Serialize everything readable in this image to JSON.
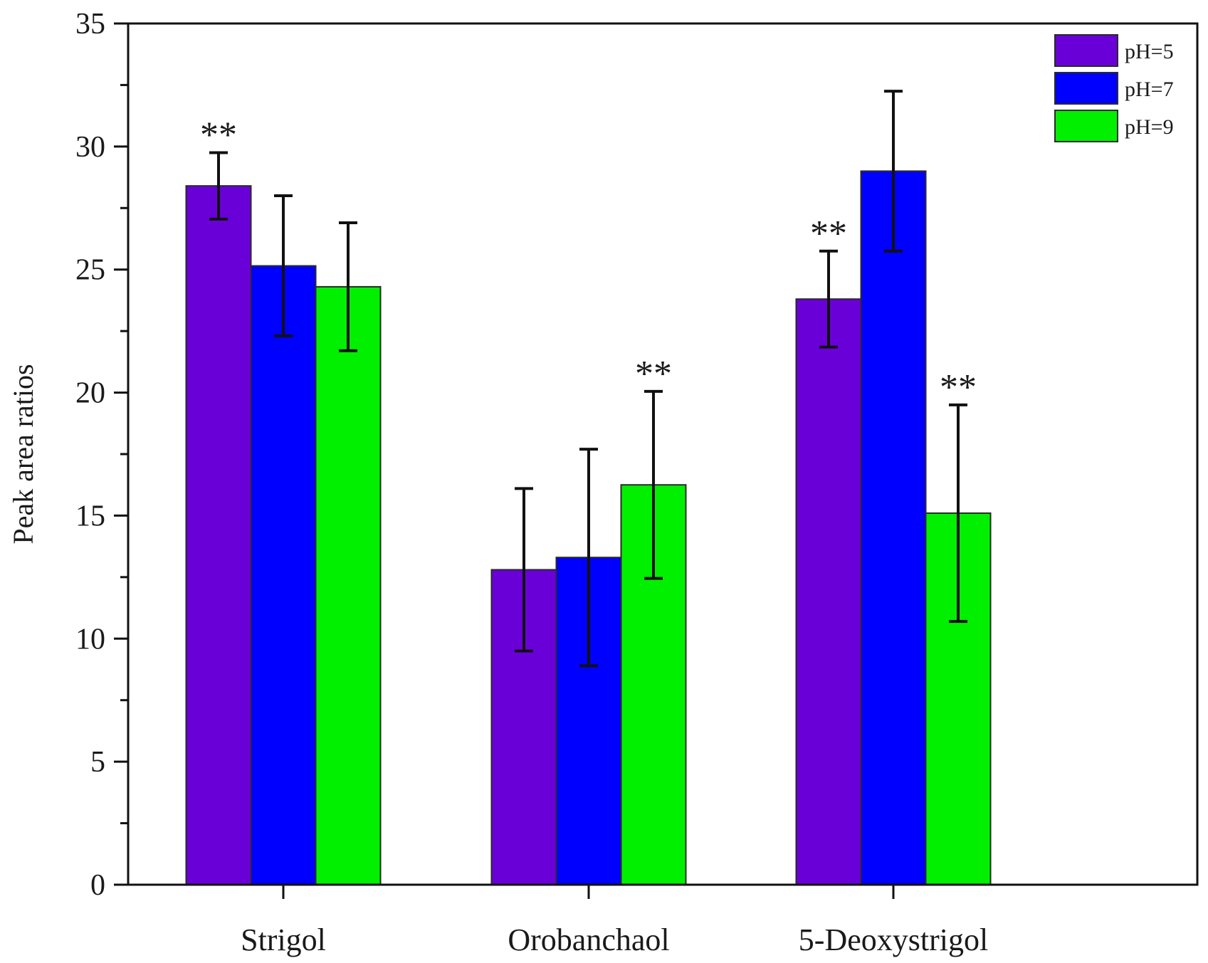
{
  "chart_data": {
    "type": "bar",
    "title": "",
    "xlabel": "",
    "ylabel": "Peak area ratios",
    "ylim": [
      0,
      35
    ],
    "yticks": [
      0,
      5,
      10,
      15,
      20,
      25,
      30,
      35
    ],
    "categories": [
      "Strigol",
      "Orobanchaol",
      "5-Deoxystrigol"
    ],
    "legend_position": "top-right",
    "series": [
      {
        "name": "pH=5",
        "color": "#6a00d8",
        "values": [
          28.4,
          12.8,
          23.8
        ],
        "errors": [
          1.35,
          3.3,
          1.95
        ],
        "significance": [
          "**",
          "",
          "**"
        ]
      },
      {
        "name": "pH=7",
        "color": "#0000ff",
        "values": [
          25.15,
          13.3,
          29.0
        ],
        "errors": [
          2.85,
          4.4,
          3.25
        ],
        "significance": [
          "",
          "",
          ""
        ]
      },
      {
        "name": "pH=9",
        "color": "#00f000",
        "values": [
          24.3,
          16.25,
          15.1
        ],
        "errors": [
          2.6,
          3.8,
          4.4
        ],
        "significance": [
          "",
          "**",
          "**"
        ]
      }
    ]
  }
}
